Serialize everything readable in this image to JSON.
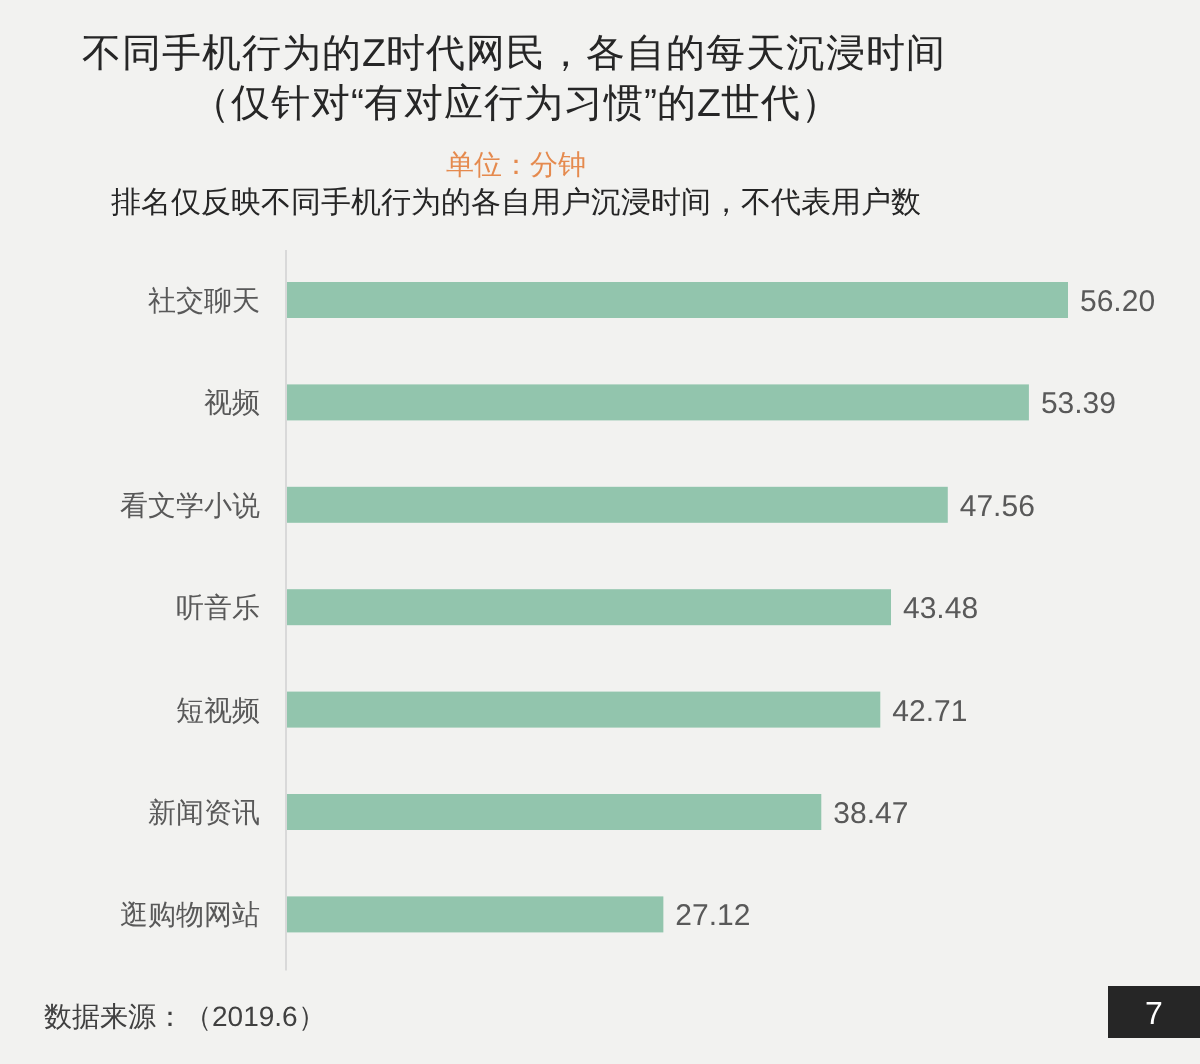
{
  "chart_data": {
    "type": "bar",
    "orientation": "horizontal",
    "title": "不同手机行为的Z时代网民，各自的每天沉浸时间",
    "subtitle": "（仅针对“有对应行为习惯”的Z世代）",
    "categories": [
      "社交聊天",
      "视频",
      "看文学小说",
      "听音乐",
      "短视频",
      "新闻资讯",
      "逛购物网站"
    ],
    "values": [
      56.2,
      53.39,
      47.56,
      43.48,
      42.71,
      38.47,
      27.12
    ],
    "value_labels": [
      "56.20",
      "53.39",
      "47.56",
      "43.48",
      "42.71",
      "38.47",
      "27.12"
    ],
    "color": "#92c5ad",
    "annotations": [
      "单位：分钟",
      "排名仅反映不同手机行为的各自用户沉浸时间，不代表用户数",
      "数据来源：（2019.6）",
      "7"
    ]
  }
}
